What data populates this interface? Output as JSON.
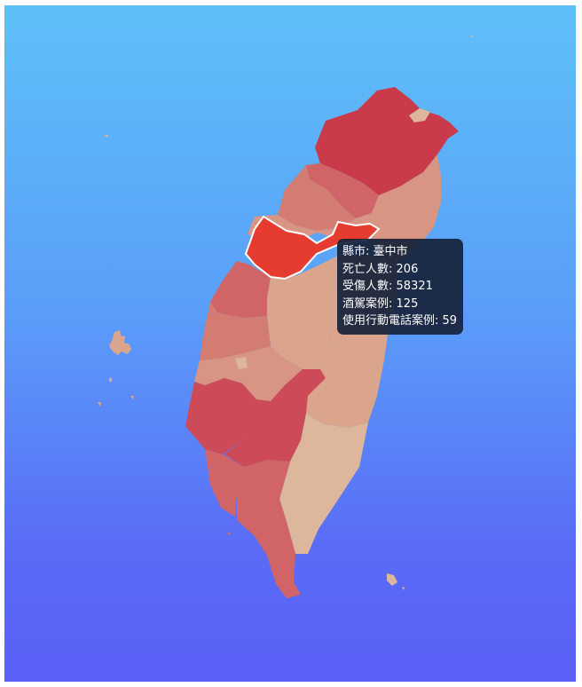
{
  "map": {
    "region_colors": {
      "darkest": "#c93a4a",
      "dark": "#cd4b58",
      "mid": "#d06466",
      "light": "#d37c72",
      "pale": "#d99583",
      "paler": "#dba48d",
      "palest": "#dcb79b",
      "selected": "#e63b2f"
    },
    "selected_county": "臺中市"
  },
  "tooltip": {
    "rows": [
      {
        "label": "縣市",
        "value": "臺中市"
      },
      {
        "label": "死亡人數",
        "value": "206"
      },
      {
        "label": "受傷人數",
        "value": "58321"
      },
      {
        "label": "酒駕案例",
        "value": "125"
      },
      {
        "label": "使用行動電話案例",
        "value": "59"
      }
    ]
  }
}
